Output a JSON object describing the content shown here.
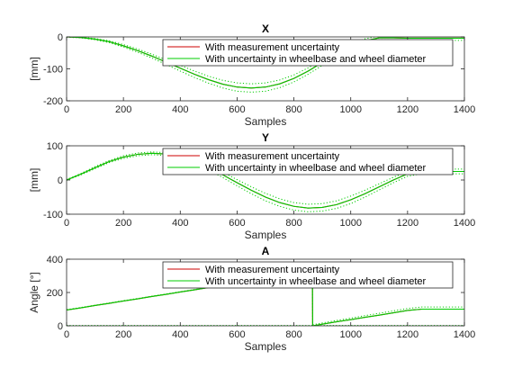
{
  "chart_data": [
    {
      "type": "line",
      "title": "X",
      "xlabel": "Samples",
      "ylabel": "[mm]",
      "xlim": [
        0,
        1400
      ],
      "ylim": [
        -200,
        0
      ],
      "xticks": [
        0,
        200,
        400,
        600,
        800,
        1000,
        1200,
        1400
      ],
      "yticks": [
        -200,
        -100,
        0
      ],
      "xtick_labels": [
        "0",
        "200",
        "400",
        "600",
        "800",
        "1000",
        "1200",
        "1400"
      ],
      "ytick_labels": [
        "-200",
        "-100",
        "0"
      ],
      "legend": {
        "placement": "top-right",
        "entries": [
          "With measurement uncertainty",
          "With uncertainty in wheelbase and wheel diameter"
        ]
      },
      "series": [
        {
          "name": "With measurement uncertainty",
          "color": "#cc0000",
          "style": "solid",
          "x": [
            0,
            50,
            100,
            150,
            200,
            250,
            300,
            350,
            400,
            450,
            500,
            550,
            600,
            650,
            700,
            750,
            800,
            850,
            900,
            950,
            1000,
            1050,
            1100,
            1150,
            1200,
            1250,
            1300,
            1350,
            1400
          ],
          "y": [
            0,
            -2,
            -7,
            -15,
            -28,
            -43,
            -60,
            -79,
            -98,
            -117,
            -134,
            -148,
            -157,
            -160,
            -157,
            -147,
            -130,
            -107,
            -80,
            -53,
            -30,
            -12,
            -3,
            -3,
            -4,
            -4,
            -4,
            -4,
            -4
          ]
        },
        {
          "name": "With uncertainty in wheelbase and wheel diameter",
          "color": "#00cc00",
          "style": "solid",
          "x": [
            0,
            50,
            100,
            150,
            200,
            250,
            300,
            350,
            400,
            450,
            500,
            550,
            600,
            650,
            700,
            750,
            800,
            850,
            900,
            950,
            1000,
            1050,
            1100,
            1150,
            1200,
            1250,
            1300,
            1350,
            1400
          ],
          "y": [
            0,
            -2,
            -7,
            -15,
            -28,
            -43,
            -60,
            -79,
            -98,
            -117,
            -134,
            -148,
            -157,
            -160,
            -157,
            -147,
            -130,
            -107,
            -80,
            -53,
            -30,
            -12,
            -3,
            -3,
            -4,
            -4,
            -4,
            -4,
            -4
          ]
        },
        {
          "color": "#00cc00",
          "style": "dotted",
          "x": [
            0,
            50,
            100,
            150,
            200,
            250,
            300,
            350,
            400,
            450,
            500,
            550,
            600,
            650,
            700,
            750,
            800,
            850,
            900,
            950,
            1000,
            1050,
            1100,
            1150,
            1200,
            1250,
            1300,
            1350,
            1400
          ],
          "y": [
            1,
            -1,
            -5,
            -12,
            -24,
            -38,
            -54,
            -72,
            -89,
            -107,
            -123,
            -136,
            -144,
            -147,
            -144,
            -135,
            -119,
            -97,
            -71,
            -45,
            -23,
            -6,
            3,
            4,
            3,
            3,
            3,
            3,
            3
          ]
        },
        {
          "color": "#00cc00",
          "style": "dotted",
          "x": [
            0,
            50,
            100,
            150,
            200,
            250,
            300,
            350,
            400,
            450,
            500,
            550,
            600,
            650,
            700,
            750,
            800,
            850,
            900,
            950,
            1000,
            1050,
            1100,
            1150,
            1200,
            1250,
            1300,
            1350,
            1400
          ],
          "y": [
            -1,
            -3,
            -9,
            -18,
            -32,
            -48,
            -66,
            -86,
            -107,
            -127,
            -145,
            -160,
            -170,
            -173,
            -170,
            -159,
            -141,
            -117,
            -89,
            -61,
            -37,
            -18,
            -9,
            -10,
            -11,
            -11,
            -11,
            -11,
            -11
          ]
        }
      ]
    },
    {
      "type": "line",
      "title": "Y",
      "xlabel": "Samples",
      "ylabel": "[mm]",
      "xlim": [
        0,
        1400
      ],
      "ylim": [
        -100,
        100
      ],
      "xticks": [
        0,
        200,
        400,
        600,
        800,
        1000,
        1200,
        1400
      ],
      "yticks": [
        -100,
        0,
        100
      ],
      "xtick_labels": [
        "0",
        "200",
        "400",
        "600",
        "800",
        "1000",
        "1200",
        "1400"
      ],
      "ytick_labels": [
        "-100",
        "0",
        "100"
      ],
      "legend": {
        "placement": "top-right",
        "entries": [
          "With measurement uncertainty",
          "With uncertainty in wheelbase and wheel diameter"
        ]
      },
      "series": [
        {
          "name": "With measurement uncertainty",
          "color": "#cc0000",
          "style": "solid",
          "x": [
            0,
            50,
            100,
            150,
            200,
            250,
            300,
            350,
            400,
            450,
            500,
            550,
            600,
            650,
            700,
            750,
            800,
            850,
            900,
            950,
            1000,
            1050,
            1100,
            1150,
            1200,
            1250,
            1300,
            1350,
            1400
          ],
          "y": [
            0,
            17,
            36,
            54,
            67,
            75,
            78,
            76,
            68,
            54,
            36,
            15,
            -8,
            -30,
            -50,
            -66,
            -77,
            -82,
            -80,
            -72,
            -58,
            -40,
            -20,
            0,
            18,
            25,
            25,
            25,
            25
          ]
        },
        {
          "name": "With uncertainty in wheelbase and wheel diameter",
          "color": "#00cc00",
          "style": "solid",
          "x": [
            0,
            50,
            100,
            150,
            200,
            250,
            300,
            350,
            400,
            450,
            500,
            550,
            600,
            650,
            700,
            750,
            800,
            850,
            900,
            950,
            1000,
            1050,
            1100,
            1150,
            1200,
            1250,
            1300,
            1350,
            1400
          ],
          "y": [
            0,
            17,
            36,
            54,
            67,
            75,
            78,
            76,
            68,
            54,
            36,
            15,
            -8,
            -30,
            -50,
            -66,
            -77,
            -82,
            -80,
            -72,
            -58,
            -40,
            -20,
            0,
            18,
            25,
            25,
            25,
            25
          ]
        },
        {
          "color": "#00cc00",
          "style": "dotted",
          "x": [
            0,
            50,
            100,
            150,
            200,
            250,
            300,
            350,
            400,
            450,
            500,
            550,
            600,
            650,
            700,
            750,
            800,
            850,
            900,
            950,
            1000,
            1050,
            1100,
            1150,
            1200,
            1250,
            1300,
            1350,
            1400
          ],
          "y": [
            1,
            19,
            39,
            57,
            71,
            79,
            82,
            80,
            73,
            60,
            43,
            23,
            1,
            -20,
            -39,
            -55,
            -66,
            -71,
            -69,
            -61,
            -47,
            -30,
            -11,
            8,
            25,
            32,
            32,
            32,
            32
          ]
        },
        {
          "color": "#00cc00",
          "style": "dotted",
          "x": [
            0,
            50,
            100,
            150,
            200,
            250,
            300,
            350,
            400,
            450,
            500,
            550,
            600,
            650,
            700,
            750,
            800,
            850,
            900,
            950,
            1000,
            1050,
            1100,
            1150,
            1200,
            1250,
            1300,
            1350,
            1400
          ],
          "y": [
            -1,
            15,
            33,
            51,
            63,
            71,
            74,
            72,
            63,
            48,
            29,
            7,
            -17,
            -40,
            -61,
            -77,
            -88,
            -93,
            -91,
            -83,
            -69,
            -50,
            -29,
            -8,
            11,
            18,
            18,
            18,
            18
          ]
        }
      ]
    },
    {
      "type": "line",
      "title": "A",
      "xlabel": "Samples",
      "ylabel": "Angle [°]",
      "xlim": [
        0,
        1400
      ],
      "ylim": [
        0,
        400
      ],
      "xticks": [
        0,
        200,
        400,
        600,
        800,
        1000,
        1200,
        1400
      ],
      "yticks": [
        0,
        200,
        400
      ],
      "xtick_labels": [
        "0",
        "200",
        "400",
        "600",
        "800",
        "1000",
        "1200",
        "1400"
      ],
      "ytick_labels": [
        "0",
        "200",
        "400"
      ],
      "legend": {
        "placement": "top-right",
        "entries": [
          "With measurement uncertainty",
          "With uncertainty in wheelbase and wheel diameter"
        ]
      },
      "series": [
        {
          "name": "With measurement uncertainty",
          "color": "#cc0000",
          "style": "solid",
          "x": [
            0,
            50,
            100,
            150,
            200,
            250,
            300,
            350,
            400,
            450,
            500,
            550,
            600,
            650,
            700,
            750,
            800,
            850,
            865,
            866,
            900,
            950,
            1000,
            1050,
            1100,
            1150,
            1200,
            1250,
            1300,
            1350,
            1400
          ],
          "y": [
            95,
            108,
            122,
            135,
            149,
            162,
            176,
            189,
            203,
            216,
            230,
            244,
            257,
            271,
            284,
            298,
            311,
            325,
            329,
            0,
            10,
            24,
            37,
            51,
            64,
            78,
            92,
            100,
            100,
            100,
            100
          ]
        },
        {
          "name": "With uncertainty in wheelbase and wheel diameter",
          "color": "#00cc00",
          "style": "solid",
          "x": [
            0,
            50,
            100,
            150,
            200,
            250,
            300,
            350,
            400,
            450,
            500,
            550,
            600,
            650,
            700,
            750,
            800,
            850,
            865,
            866,
            900,
            950,
            1000,
            1050,
            1100,
            1150,
            1200,
            1250,
            1300,
            1350,
            1400
          ],
          "y": [
            95,
            108,
            122,
            135,
            149,
            162,
            176,
            189,
            203,
            216,
            230,
            244,
            257,
            271,
            284,
            298,
            311,
            325,
            329,
            0,
            10,
            24,
            37,
            51,
            64,
            78,
            92,
            100,
            100,
            100,
            100
          ]
        },
        {
          "color": "#00cc00",
          "style": "dotted",
          "x": [
            0,
            50,
            100,
            150,
            200,
            250,
            300,
            350,
            400,
            450,
            500,
            550,
            600,
            650,
            700,
            750,
            800,
            850,
            865,
            866,
            900,
            950,
            1000,
            1050,
            1100,
            1150,
            1200,
            1250,
            1300,
            1350,
            1400
          ],
          "y": [
            97,
            110,
            124,
            137,
            151,
            164,
            178,
            191,
            205,
            218,
            232,
            246,
            259,
            273,
            286,
            300,
            313,
            327,
            331,
            6,
            17,
            32,
            46,
            61,
            75,
            90,
            104,
            113,
            113,
            113,
            113
          ]
        },
        {
          "color": "#00cc00",
          "style": "dotted",
          "x": [
            0,
            1400
          ],
          "y": [
            2,
            2
          ]
        }
      ]
    }
  ]
}
